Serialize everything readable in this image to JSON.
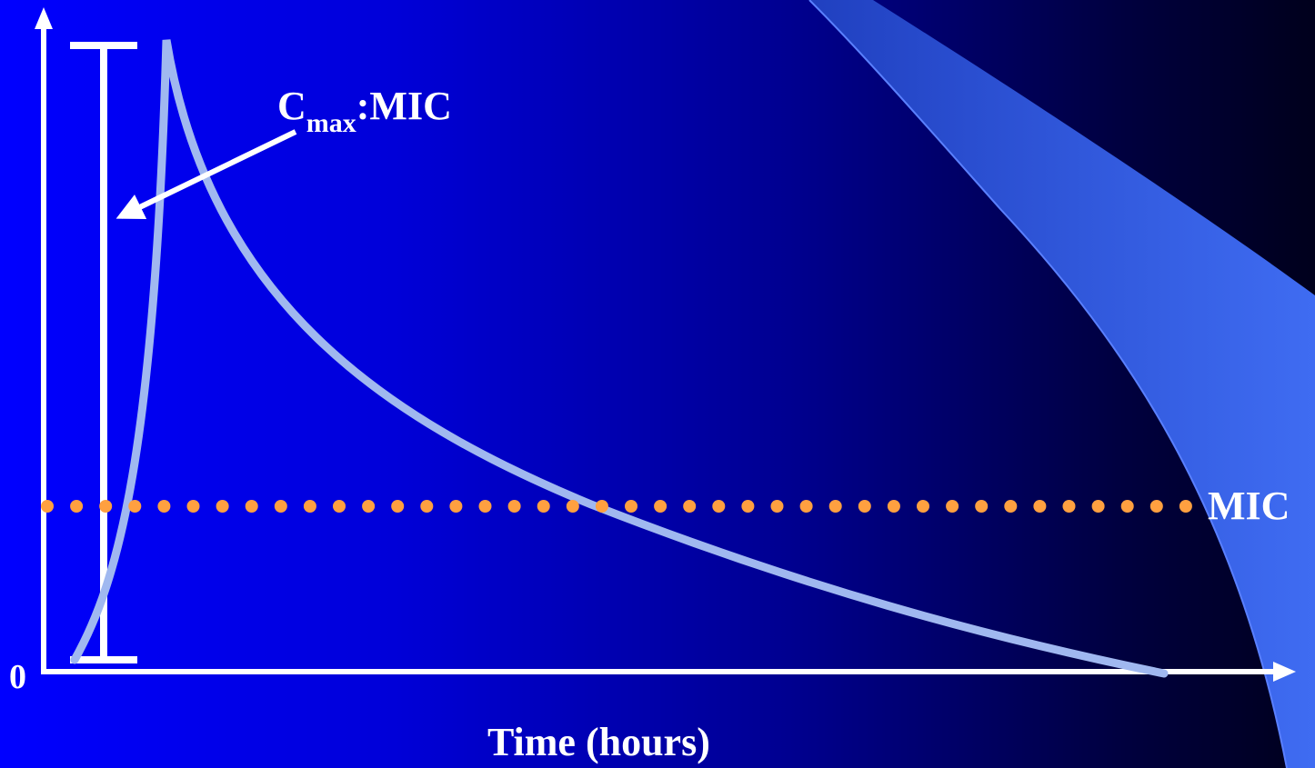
{
  "diagram": {
    "cmax_label": {
      "main": "C",
      "sub": "max",
      "suffix": ":MIC"
    },
    "mic_label": "MIC",
    "origin_label": "0",
    "x_axis_title": "Time (hours)"
  },
  "colors": {
    "background_left": "#0000ff",
    "background_right": "#00001c",
    "curve": "#a0b8f0",
    "mic_dots": "#ffa040",
    "axes": "#ffffff",
    "decor_band": "#3a66ee"
  }
}
